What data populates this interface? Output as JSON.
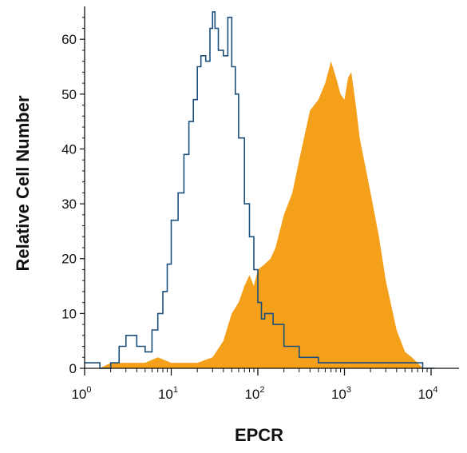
{
  "chart_data": {
    "type": "area",
    "title": "",
    "xlabel": "EPCR",
    "ylabel": "Relative Cell Number",
    "x_scale": "log",
    "xlim": [
      1,
      12000
    ],
    "ylim": [
      0,
      66
    ],
    "x_ticks": [
      {
        "value": 1,
        "base": "10",
        "exp": "0"
      },
      {
        "value": 10,
        "base": "10",
        "exp": "1"
      },
      {
        "value": 100,
        "base": "10",
        "exp": "2"
      },
      {
        "value": 1000,
        "base": "10",
        "exp": "3"
      },
      {
        "value": 10000,
        "base": "10",
        "exp": "4"
      }
    ],
    "y_ticks": [
      {
        "value": 0,
        "label": "0"
      },
      {
        "value": 10,
        "label": "10"
      },
      {
        "value": 20,
        "label": "20"
      },
      {
        "value": 30,
        "label": "30"
      },
      {
        "value": 40,
        "label": "40"
      },
      {
        "value": 50,
        "label": "50"
      },
      {
        "value": 60,
        "label": "60"
      }
    ],
    "grid": false,
    "colors": {
      "filled": "#f5a01a",
      "outline": "#1c4f7c",
      "axis": "#111111"
    },
    "series": [
      {
        "style": "filled",
        "x": [
          1,
          1.5,
          2,
          3,
          5,
          7,
          10,
          15,
          20,
          30,
          40,
          50,
          60,
          70,
          80,
          90,
          100,
          120,
          140,
          160,
          200,
          250,
          300,
          400,
          500,
          600,
          700,
          800,
          900,
          1000,
          1100,
          1200,
          1300,
          1400,
          1500,
          2000,
          2500,
          3000,
          4000,
          5000,
          6000,
          7000,
          8000,
          10000
        ],
        "values": [
          0,
          0,
          1,
          1,
          1,
          2,
          1,
          1,
          1,
          2,
          5,
          10,
          12,
          15,
          17,
          15,
          18,
          19,
          20,
          22,
          28,
          32,
          38,
          47,
          49,
          52,
          56,
          53,
          50,
          49,
          53,
          54,
          50,
          46,
          42,
          32,
          24,
          16,
          7,
          3,
          2,
          1,
          0,
          0
        ]
      },
      {
        "style": "outline",
        "x": [
          1,
          1.5,
          2,
          2.5,
          3,
          4,
          5,
          6,
          7,
          8,
          9,
          10,
          12,
          14,
          16,
          18,
          20,
          22,
          25,
          28,
          30,
          32,
          35,
          40,
          45,
          50,
          55,
          60,
          70,
          80,
          90,
          100,
          110,
          120,
          150,
          200,
          250,
          300,
          400,
          500,
          700,
          1000,
          2000,
          4000,
          8000,
          11000
        ],
        "values": [
          1,
          0,
          1,
          4,
          6,
          4,
          3,
          7,
          10,
          14,
          19,
          27,
          32,
          39,
          45,
          49,
          55,
          57,
          56,
          62,
          65,
          62,
          58,
          57,
          64,
          55,
          50,
          42,
          30,
          24,
          18,
          12,
          9,
          10,
          8,
          4,
          4,
          2,
          2,
          1,
          1,
          1,
          1,
          1,
          0,
          0
        ]
      }
    ]
  }
}
